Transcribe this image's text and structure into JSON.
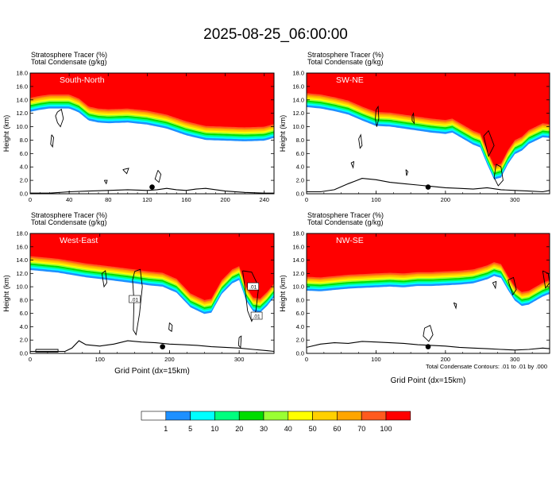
{
  "title": "2025-08-25_06:00:00",
  "panel_header": {
    "line1": "Stratosphere Tracer   (%)",
    "line2": "Total Condensate   (g/kg)"
  },
  "footnote": "Total Condensate Contours: .01 to .01 by .000",
  "colors": {
    "bins": [
      "#ffffff",
      "#1e90ff",
      "#00ffff",
      "#00ff7f",
      "#00dd00",
      "#9aff33",
      "#ffff00",
      "#ffd000",
      "#ffa500",
      "#ff5a1e",
      "#ff0000"
    ],
    "contour": "#000000",
    "terrain": "#000000",
    "marker": "#000000"
  },
  "colorbar": {
    "labels": [
      "1",
      "5",
      "10",
      "20",
      "30",
      "40",
      "50",
      "60",
      "70",
      "100"
    ]
  },
  "chart_data": [
    {
      "type": "heatmap",
      "panel_label": "South-North",
      "ylabel": "Height (km)",
      "xlabel": "",
      "xlim": [
        0,
        250
      ],
      "ylim": [
        0,
        18
      ],
      "xticks": [
        0,
        40,
        80,
        120,
        160,
        200,
        240
      ],
      "yticks": [
        0.0,
        2.0,
        4.0,
        6.0,
        8.0,
        10.0,
        12.0,
        14.0,
        16.0,
        18.0
      ],
      "tropopause_x": [
        0,
        10,
        20,
        40,
        50,
        60,
        70,
        80,
        100,
        120,
        140,
        160,
        180,
        200,
        220,
        240,
        250
      ],
      "tropopause_km": [
        14.3,
        14.6,
        14.8,
        14.8,
        14.2,
        13.0,
        12.7,
        12.6,
        12.7,
        12.4,
        11.8,
        10.8,
        10.1,
        10.0,
        9.9,
        10.0,
        10.4
      ],
      "terrain_x": [
        0,
        20,
        40,
        60,
        80,
        100,
        120,
        130,
        140,
        150,
        160,
        170,
        180,
        200,
        220,
        240,
        250
      ],
      "terrain_km": [
        0.1,
        0.1,
        0.3,
        0.4,
        0.5,
        0.6,
        0.5,
        0.6,
        0.8,
        0.6,
        0.5,
        0.7,
        0.8,
        0.4,
        0.2,
        0.1,
        0.1
      ],
      "marker": {
        "x": 125,
        "y": 1.0
      },
      "contours": [
        [
          [
            28,
            12.2
          ],
          [
            32,
            12.6
          ],
          [
            34,
            11.2
          ],
          [
            31,
            10.0
          ],
          [
            28,
            10.6
          ],
          [
            26,
            11.6
          ],
          [
            28,
            12.2
          ]
        ],
        [
          [
            22,
            8.8
          ],
          [
            24,
            8.4
          ],
          [
            23,
            7.0
          ],
          [
            21,
            7.4
          ],
          [
            22,
            8.8
          ]
        ],
        [
          [
            95,
            3.6
          ],
          [
            101,
            3.8
          ],
          [
            99,
            3.0
          ],
          [
            95,
            3.6
          ]
        ],
        [
          [
            131,
            3.5
          ],
          [
            134,
            2.9
          ],
          [
            132,
            1.7
          ],
          [
            128,
            2.2
          ],
          [
            131,
            3.5
          ]
        ],
        [
          [
            76,
            2.0
          ],
          [
            79,
            2.0
          ],
          [
            78,
            1.5
          ],
          [
            76,
            2.0
          ]
        ]
      ]
    },
    {
      "type": "heatmap",
      "panel_label": "SW-NE",
      "ylabel": "Height (km)",
      "xlabel": "",
      "xlim": [
        0,
        350
      ],
      "ylim": [
        0,
        18
      ],
      "xticks": [
        0,
        100,
        200,
        300
      ],
      "yticks": [
        0.0,
        2.0,
        4.0,
        6.0,
        8.0,
        10.0,
        12.0,
        14.0,
        16.0,
        18.0
      ],
      "tropopause_x": [
        0,
        20,
        40,
        60,
        80,
        100,
        120,
        140,
        160,
        180,
        200,
        210,
        220,
        230,
        240,
        250,
        260,
        270,
        280,
        290,
        300,
        310,
        320,
        340,
        350
      ],
      "tropopause_km": [
        15.0,
        14.8,
        14.4,
        13.9,
        13.0,
        12.2,
        12.1,
        11.8,
        11.5,
        11.2,
        11.0,
        11.2,
        10.6,
        10.0,
        9.4,
        9.0,
        6.5,
        4.2,
        4.5,
        6.5,
        8.0,
        8.5,
        9.5,
        10.5,
        10.4
      ],
      "terrain_x": [
        0,
        20,
        40,
        60,
        70,
        80,
        100,
        120,
        140,
        160,
        180,
        200,
        220,
        240,
        260,
        280,
        300,
        320,
        340,
        350
      ],
      "terrain_km": [
        0.3,
        0.3,
        0.6,
        1.5,
        1.9,
        2.3,
        2.1,
        1.7,
        1.5,
        1.3,
        1.1,
        0.9,
        0.8,
        0.7,
        0.9,
        0.6,
        0.5,
        0.4,
        0.3,
        0.5
      ],
      "marker": {
        "x": 175,
        "y": 1.0
      },
      "contours": [
        [
          [
            100,
            12.5
          ],
          [
            103,
            13.0
          ],
          [
            104,
            11.2
          ],
          [
            101,
            10.0
          ],
          [
            99,
            11.2
          ],
          [
            100,
            12.5
          ]
        ],
        [
          [
            75,
            8.2
          ],
          [
            78,
            8.8
          ],
          [
            80,
            7.2
          ],
          [
            77,
            6.8
          ],
          [
            75,
            8.2
          ]
        ],
        [
          [
            152,
            11.6
          ],
          [
            154,
            12.0
          ],
          [
            155,
            10.5
          ],
          [
            152,
            10.9
          ],
          [
            152,
            11.6
          ]
        ],
        [
          [
            255,
            8.6
          ],
          [
            262,
            9.4
          ],
          [
            270,
            7.2
          ],
          [
            262,
            5.6
          ],
          [
            255,
            8.6
          ]
        ],
        [
          [
            273,
            4.4
          ],
          [
            280,
            4.0
          ],
          [
            283,
            2.0
          ],
          [
            276,
            1.2
          ],
          [
            270,
            2.4
          ],
          [
            273,
            4.4
          ]
        ],
        [
          [
            64,
            4.6
          ],
          [
            68,
            4.8
          ],
          [
            67,
            3.9
          ],
          [
            64,
            4.6
          ]
        ],
        [
          [
            143,
            3.6
          ],
          [
            146,
            3.3
          ],
          [
            144,
            2.7
          ],
          [
            143,
            3.6
          ]
        ]
      ]
    },
    {
      "type": "heatmap",
      "panel_label": "West-East",
      "ylabel": "Height (km)",
      "xlabel": "Grid Point (dx=15km)",
      "xlim": [
        0,
        350
      ],
      "ylim": [
        0,
        18
      ],
      "xticks": [
        0,
        100,
        200,
        300
      ],
      "yticks": [
        0.0,
        2.0,
        4.0,
        6.0,
        8.0,
        10.0,
        12.0,
        14.0,
        16.0,
        18.0
      ],
      "tropopause_x": [
        0,
        40,
        80,
        120,
        150,
        170,
        190,
        210,
        230,
        250,
        260,
        275,
        290,
        300,
        310,
        320,
        330,
        340,
        350
      ],
      "tropopause_km": [
        14.6,
        14.2,
        13.5,
        13.0,
        12.6,
        12.3,
        12.1,
        11.2,
        9.0,
        8.0,
        8.2,
        11.0,
        12.6,
        13.1,
        10.0,
        8.4,
        8.2,
        9.2,
        10.5
      ],
      "terrain_x": [
        0,
        30,
        50,
        60,
        70,
        80,
        100,
        120,
        140,
        160,
        180,
        200,
        220,
        240,
        260,
        280,
        300,
        320,
        340,
        350
      ],
      "terrain_km": [
        0.3,
        0.3,
        0.3,
        0.8,
        1.9,
        1.3,
        1.1,
        1.4,
        1.9,
        1.7,
        1.6,
        1.4,
        1.3,
        1.2,
        1.0,
        0.9,
        0.8,
        0.6,
        0.4,
        0.3
      ],
      "marker": {
        "x": 190,
        "y": 1.0
      },
      "contour_labels": [
        {
          "text": ".01",
          "x": 150,
          "y": 8.1
        },
        {
          "text": ".01",
          "x": 320,
          "y": 10.0
        },
        {
          "text": ".01",
          "x": 325,
          "y": 5.6
        }
      ],
      "contours": [
        [
          [
            150,
            12.3
          ],
          [
            158,
            12.6
          ],
          [
            161,
            10.0
          ],
          [
            157,
            6.0
          ],
          [
            152,
            2.8
          ],
          [
            148,
            3.5
          ],
          [
            149,
            8.0
          ],
          [
            147,
            11.0
          ],
          [
            150,
            12.3
          ]
        ],
        [
          [
            103,
            12.0
          ],
          [
            108,
            12.4
          ],
          [
            110,
            10.6
          ],
          [
            106,
            10.0
          ],
          [
            103,
            12.0
          ]
        ],
        [
          [
            305,
            12.4
          ],
          [
            318,
            12.2
          ],
          [
            328,
            10.0
          ],
          [
            324,
            6.4
          ],
          [
            318,
            4.8
          ],
          [
            312,
            6.4
          ],
          [
            308,
            10.0
          ],
          [
            305,
            12.4
          ]
        ],
        [
          [
            200,
            4.6
          ],
          [
            204,
            4.2
          ],
          [
            203,
            3.3
          ],
          [
            199,
            3.6
          ],
          [
            200,
            4.6
          ]
        ],
        [
          [
            300,
            2.4
          ],
          [
            303,
            2.6
          ],
          [
            302,
            0.9
          ],
          [
            299,
            1.2
          ],
          [
            300,
            2.4
          ]
        ],
        [
          [
            8,
            0.6
          ],
          [
            40,
            0.6
          ],
          [
            40,
            0.2
          ],
          [
            8,
            0.2
          ],
          [
            8,
            0.6
          ]
        ]
      ]
    },
    {
      "type": "heatmap",
      "panel_label": "NW-SE",
      "ylabel": "Height (km)",
      "xlabel": "Grid Point (dx=15km)",
      "xlim": [
        0,
        350
      ],
      "ylim": [
        0,
        18
      ],
      "xticks": [
        0,
        100,
        200,
        300
      ],
      "yticks": [
        0.0,
        2.0,
        4.0,
        6.0,
        8.0,
        10.0,
        12.0,
        14.0,
        16.0,
        18.0
      ],
      "tropopause_x": [
        0,
        20,
        40,
        60,
        80,
        100,
        120,
        140,
        160,
        180,
        200,
        220,
        240,
        260,
        270,
        280,
        290,
        300,
        310,
        320,
        330,
        340,
        350
      ],
      "tropopause_km": [
        11.5,
        11.4,
        11.6,
        11.8,
        11.9,
        12.0,
        12.1,
        12.0,
        12.2,
        12.2,
        12.3,
        12.4,
        12.6,
        13.2,
        13.7,
        13.4,
        11.6,
        10.0,
        9.2,
        9.4,
        10.0,
        10.6,
        11.0
      ],
      "terrain_x": [
        0,
        20,
        40,
        60,
        80,
        100,
        120,
        140,
        160,
        180,
        200,
        220,
        240,
        260,
        280,
        300,
        320,
        340,
        350
      ],
      "terrain_km": [
        0.9,
        1.4,
        1.6,
        1.5,
        1.8,
        1.7,
        1.6,
        1.5,
        1.3,
        1.2,
        1.1,
        0.9,
        0.8,
        0.7,
        0.6,
        0.5,
        0.6,
        0.8,
        0.7
      ],
      "marker": {
        "x": 175,
        "y": 1.0
      },
      "contours": [
        [
          [
            290,
            11.0
          ],
          [
            298,
            11.4
          ],
          [
            302,
            9.6
          ],
          [
            297,
            8.8
          ],
          [
            290,
            11.0
          ]
        ],
        [
          [
            268,
            10.6
          ],
          [
            273,
            10.8
          ],
          [
            272,
            9.8
          ],
          [
            268,
            10.6
          ]
        ],
        [
          [
            212,
            7.6
          ],
          [
            216,
            7.4
          ],
          [
            215,
            6.8
          ],
          [
            212,
            7.6
          ]
        ],
        [
          [
            170,
            3.8
          ],
          [
            178,
            4.2
          ],
          [
            182,
            2.8
          ],
          [
            176,
            1.8
          ],
          [
            168,
            2.6
          ],
          [
            170,
            3.8
          ]
        ],
        [
          [
            340,
            12.4
          ],
          [
            348,
            12.0
          ],
          [
            350,
            10.6
          ],
          [
            344,
            9.8
          ],
          [
            340,
            12.4
          ]
        ]
      ]
    }
  ]
}
